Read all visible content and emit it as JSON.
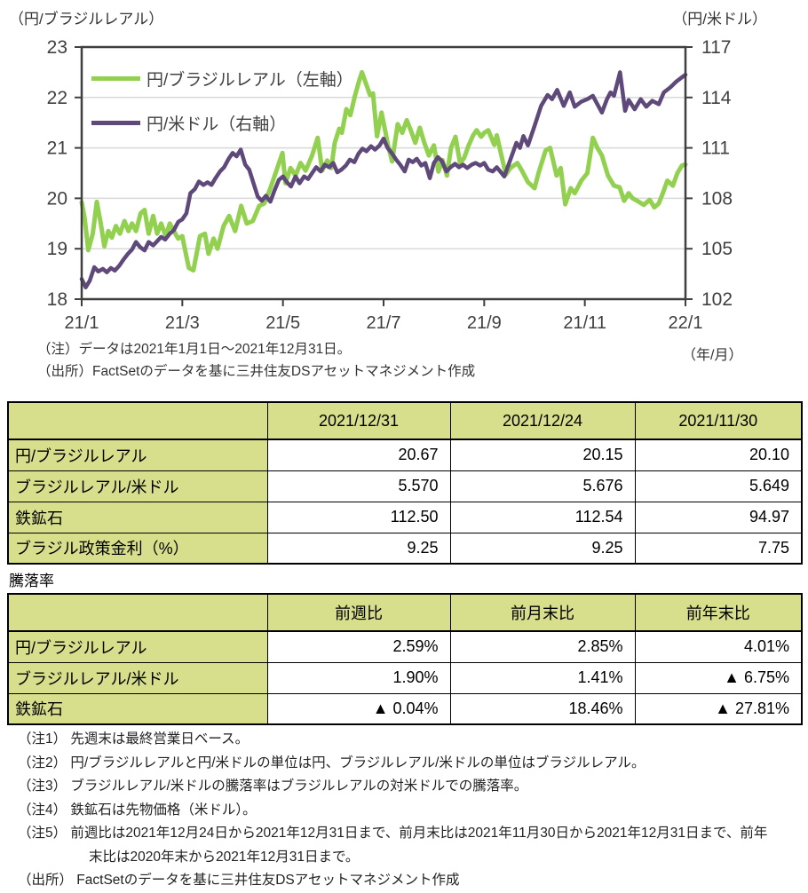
{
  "chart": {
    "unit_left": "（円/ブラジルレアル）",
    "unit_right": "（円/米ドル）",
    "x_unit": "（年/月）",
    "note": "（注）データは2021年1月1日～2021年12月31日。",
    "source": "（出所）FactSetのデータを基に三井住友DSアセットマネジメント作成",
    "legend": [
      {
        "label": "円/ブラジルレアル（左軸）"
      },
      {
        "label": "円/米ドル（右軸）"
      }
    ]
  },
  "chart_data": {
    "type": "line",
    "title": "",
    "grid": true,
    "legend_position": "top-left-inside",
    "axis_color": "#3f3f3f",
    "grid_color": "#d9d9d9",
    "label_color": "#404040",
    "x_axis": {
      "label": "（年/月）",
      "ticks": [
        "21/1",
        "21/3",
        "21/5",
        "21/7",
        "21/9",
        "21/11",
        "22/1"
      ],
      "range_months": [
        0,
        12
      ]
    },
    "y_left": {
      "label": "（円/ブラジルレアル）",
      "min": 18,
      "max": 23,
      "ticks": [
        23,
        22,
        21,
        20,
        19,
        18
      ]
    },
    "y_right": {
      "label": "（円/米ドル）",
      "min": 102,
      "max": 117,
      "ticks": [
        117,
        114,
        111,
        108,
        105,
        102
      ]
    },
    "series": [
      {
        "name": "円/ブラジルレアル（左軸）",
        "axis": "left",
        "color": "#92d050",
        "width": 5,
        "points": [
          [
            0,
            19.92
          ],
          [
            0.06,
            19.6
          ],
          [
            0.13,
            18.97
          ],
          [
            0.22,
            19.3
          ],
          [
            0.3,
            19.93
          ],
          [
            0.38,
            19.5
          ],
          [
            0.45,
            19.05
          ],
          [
            0.53,
            19.35
          ],
          [
            0.6,
            19.22
          ],
          [
            0.68,
            19.45
          ],
          [
            0.76,
            19.3
          ],
          [
            0.85,
            19.55
          ],
          [
            0.93,
            19.35
          ],
          [
            1,
            19.5
          ],
          [
            1.08,
            19.35
          ],
          [
            1.17,
            19.7
          ],
          [
            1.25,
            19.77
          ],
          [
            1.33,
            19.3
          ],
          [
            1.42,
            19.65
          ],
          [
            1.5,
            19.3
          ],
          [
            1.58,
            19.5
          ],
          [
            1.67,
            19.25
          ],
          [
            1.75,
            19.5
          ],
          [
            1.83,
            19.35
          ],
          [
            1.92,
            19.2
          ],
          [
            2,
            19.25
          ],
          [
            2.08,
            18.85
          ],
          [
            2.13,
            18.62
          ],
          [
            2.22,
            18.57
          ],
          [
            2.35,
            19.25
          ],
          [
            2.45,
            19.3
          ],
          [
            2.52,
            18.9
          ],
          [
            2.62,
            19.2
          ],
          [
            2.7,
            19
          ],
          [
            2.82,
            19.45
          ],
          [
            2.93,
            19.65
          ],
          [
            3.05,
            19.35
          ],
          [
            3.17,
            19.85
          ],
          [
            3.28,
            19.5
          ],
          [
            3.4,
            19.55
          ],
          [
            3.53,
            19.85
          ],
          [
            3.63,
            19.9
          ],
          [
            3.75,
            20.2
          ],
          [
            3.87,
            20.55
          ],
          [
            3.99,
            20.9
          ],
          [
            4.05,
            20.3
          ],
          [
            4.15,
            20.6
          ],
          [
            4.25,
            20.45
          ],
          [
            4.35,
            20.7
          ],
          [
            4.45,
            20.55
          ],
          [
            4.58,
            20.85
          ],
          [
            4.69,
            21.2
          ],
          [
            4.78,
            20.55
          ],
          [
            4.88,
            20.75
          ],
          [
            4.96,
            20.6
          ],
          [
            5.03,
            21.1
          ],
          [
            5.12,
            21.38
          ],
          [
            5.17,
            21.3
          ],
          [
            5.26,
            21.77
          ],
          [
            5.34,
            21.65
          ],
          [
            5.43,
            22.03
          ],
          [
            5.52,
            22.35
          ],
          [
            5.57,
            22.5
          ],
          [
            5.66,
            22.25
          ],
          [
            5.73,
            22.05
          ],
          [
            5.79,
            22.08
          ],
          [
            5.87,
            21.23
          ],
          [
            5.96,
            21.7
          ],
          [
            6.09,
            21.05
          ],
          [
            6.17,
            20.73
          ],
          [
            6.28,
            21.47
          ],
          [
            6.37,
            21.3
          ],
          [
            6.46,
            21.55
          ],
          [
            6.54,
            21.35
          ],
          [
            6.63,
            21.1
          ],
          [
            6.72,
            21.4
          ],
          [
            6.81,
            21.1
          ],
          [
            6.9,
            20.85
          ],
          [
            7,
            21.05
          ],
          [
            7.09,
            20.53
          ],
          [
            7.17,
            20.76
          ],
          [
            7.26,
            20.45
          ],
          [
            7.34,
            21
          ],
          [
            7.43,
            21.22
          ],
          [
            7.52,
            20.7
          ],
          [
            7.6,
            20.8
          ],
          [
            7.69,
            21.05
          ],
          [
            7.78,
            21.25
          ],
          [
            7.85,
            21.35
          ],
          [
            7.94,
            21.22
          ],
          [
            8,
            21.3
          ],
          [
            8.08,
            21.35
          ],
          [
            8.2,
            21.06
          ],
          [
            8.25,
            21.25
          ],
          [
            8.43,
            20.47
          ],
          [
            8.52,
            20.6
          ],
          [
            8.66,
            20.7
          ],
          [
            8.75,
            20.55
          ],
          [
            8.87,
            20.32
          ],
          [
            9,
            20.2
          ],
          [
            9.08,
            20.5
          ],
          [
            9.22,
            20.95
          ],
          [
            9.31,
            21
          ],
          [
            9.44,
            20.45
          ],
          [
            9.52,
            20.6
          ],
          [
            9.61,
            19.88
          ],
          [
            9.72,
            20.2
          ],
          [
            9.8,
            20.1
          ],
          [
            9.93,
            20.35
          ],
          [
            10.05,
            20.5
          ],
          [
            10.16,
            21.2
          ],
          [
            10.25,
            21
          ],
          [
            10.34,
            20.85
          ],
          [
            10.46,
            20.45
          ],
          [
            10.58,
            20.25
          ],
          [
            10.69,
            20.22
          ],
          [
            10.78,
            19.95
          ],
          [
            10.87,
            20.1
          ],
          [
            10.95,
            20
          ],
          [
            11.04,
            19.95
          ],
          [
            11.17,
            19.87
          ],
          [
            11.29,
            19.97
          ],
          [
            11.38,
            19.82
          ],
          [
            11.47,
            19.9
          ],
          [
            11.55,
            20.1
          ],
          [
            11.64,
            20.35
          ],
          [
            11.75,
            20.25
          ],
          [
            11.84,
            20.5
          ],
          [
            11.93,
            20.65
          ],
          [
            12,
            20.67
          ]
        ]
      },
      {
        "name": "円/米ドル（右軸）",
        "axis": "right",
        "color": "#5f497a",
        "width": 4.5,
        "points": [
          [
            0,
            103.2
          ],
          [
            0.08,
            102.7
          ],
          [
            0.16,
            103.1
          ],
          [
            0.25,
            103.9
          ],
          [
            0.33,
            103.65
          ],
          [
            0.42,
            103.8
          ],
          [
            0.5,
            103.6
          ],
          [
            0.58,
            103.85
          ],
          [
            0.66,
            103.7
          ],
          [
            0.75,
            104
          ],
          [
            0.83,
            104.35
          ],
          [
            0.92,
            104.7
          ],
          [
            1,
            104.95
          ],
          [
            1.08,
            105.4
          ],
          [
            1.16,
            105.1
          ],
          [
            1.25,
            104.9
          ],
          [
            1.33,
            105.4
          ],
          [
            1.42,
            105.2
          ],
          [
            1.5,
            105.45
          ],
          [
            1.58,
            105.7
          ],
          [
            1.66,
            105.55
          ],
          [
            1.75,
            105.9
          ],
          [
            1.83,
            106.1
          ],
          [
            1.92,
            106.6
          ],
          [
            2,
            106.75
          ],
          [
            2.08,
            107.1
          ],
          [
            2.16,
            108.3
          ],
          [
            2.25,
            108.55
          ],
          [
            2.33,
            109
          ],
          [
            2.42,
            108.8
          ],
          [
            2.5,
            108.95
          ],
          [
            2.58,
            108.8
          ],
          [
            2.66,
            109.2
          ],
          [
            2.75,
            109.6
          ],
          [
            2.83,
            109.85
          ],
          [
            2.92,
            110.35
          ],
          [
            3,
            110.7
          ],
          [
            3.08,
            110.5
          ],
          [
            3.16,
            110.9
          ],
          [
            3.25,
            110
          ],
          [
            3.33,
            109.7
          ],
          [
            3.42,
            108.85
          ],
          [
            3.5,
            108.1
          ],
          [
            3.58,
            107.85
          ],
          [
            3.66,
            108.15
          ],
          [
            3.75,
            107.8
          ],
          [
            3.83,
            108.45
          ],
          [
            3.92,
            109.1
          ],
          [
            4,
            109.3
          ],
          [
            4.08,
            108.95
          ],
          [
            4.16,
            108.7
          ],
          [
            4.25,
            109.3
          ],
          [
            4.33,
            108.9
          ],
          [
            4.42,
            109.3
          ],
          [
            4.5,
            109.15
          ],
          [
            4.58,
            109.5
          ],
          [
            4.66,
            109.85
          ],
          [
            4.75,
            109.6
          ],
          [
            4.83,
            110
          ],
          [
            4.92,
            109.85
          ],
          [
            5,
            110.1
          ],
          [
            5.08,
            109.55
          ],
          [
            5.16,
            109.7
          ],
          [
            5.25,
            109.95
          ],
          [
            5.33,
            110.3
          ],
          [
            5.42,
            110.15
          ],
          [
            5.5,
            110.65
          ],
          [
            5.58,
            110.95
          ],
          [
            5.66,
            110.8
          ],
          [
            5.75,
            111.1
          ],
          [
            5.83,
            110.9
          ],
          [
            5.92,
            111.15
          ],
          [
            6,
            111.55
          ],
          [
            6.08,
            111
          ],
          [
            6.16,
            110.7
          ],
          [
            6.25,
            110.3
          ],
          [
            6.33,
            110
          ],
          [
            6.42,
            109.6
          ],
          [
            6.5,
            110.3
          ],
          [
            6.58,
            110.15
          ],
          [
            6.66,
            110.35
          ],
          [
            6.75,
            109.95
          ],
          [
            6.83,
            110.1
          ],
          [
            6.92,
            109.2
          ],
          [
            7,
            110.1
          ],
          [
            7.08,
            110.45
          ],
          [
            7.16,
            110.2
          ],
          [
            7.25,
            109.6
          ],
          [
            7.33,
            109.85
          ],
          [
            7.42,
            110.05
          ],
          [
            7.5,
            109.85
          ],
          [
            7.58,
            110
          ],
          [
            7.66,
            109.8
          ],
          [
            7.75,
            110
          ],
          [
            7.83,
            110.1
          ],
          [
            7.92,
            109.95
          ],
          [
            8,
            110.1
          ],
          [
            8.08,
            109.7
          ],
          [
            8.17,
            109.6
          ],
          [
            8.25,
            109.85
          ],
          [
            8.4,
            109.3
          ],
          [
            8.52,
            110.3
          ],
          [
            8.64,
            111.3
          ],
          [
            8.71,
            111
          ],
          [
            8.78,
            111.7
          ],
          [
            8.87,
            111.15
          ],
          [
            9,
            112.3
          ],
          [
            9.13,
            113.5
          ],
          [
            9.26,
            114.15
          ],
          [
            9.35,
            113.9
          ],
          [
            9.45,
            114.45
          ],
          [
            9.58,
            113.5
          ],
          [
            9.7,
            114.3
          ],
          [
            9.8,
            113.45
          ],
          [
            9.93,
            113.75
          ],
          [
            10.05,
            113.9
          ],
          [
            10.16,
            114.1
          ],
          [
            10.25,
            113.6
          ],
          [
            10.34,
            113.1
          ],
          [
            10.44,
            113.9
          ],
          [
            10.51,
            114.3
          ],
          [
            10.58,
            114.1
          ],
          [
            10.7,
            115.5
          ],
          [
            10.8,
            113.2
          ],
          [
            10.87,
            113.85
          ],
          [
            10.99,
            113.3
          ],
          [
            11.11,
            113.9
          ],
          [
            11.22,
            113.45
          ],
          [
            11.34,
            113.8
          ],
          [
            11.47,
            113.6
          ],
          [
            11.57,
            114.3
          ],
          [
            11.7,
            114.6
          ],
          [
            11.82,
            114.95
          ],
          [
            11.93,
            115.2
          ],
          [
            12,
            115.35
          ]
        ]
      }
    ]
  },
  "table1": {
    "headers": [
      "",
      "2021/12/31",
      "2021/12/24",
      "2021/11/30"
    ],
    "rows": [
      {
        "label": "円/ブラジルレアル",
        "values": [
          "20.67",
          "20.15",
          "20.10"
        ]
      },
      {
        "label": "ブラジルレアル/米ドル",
        "values": [
          "5.570",
          "5.676",
          "5.649"
        ]
      },
      {
        "label": "鉄鉱石",
        "values": [
          "112.50",
          "112.54",
          "94.97"
        ]
      },
      {
        "label": "ブラジル政策金利（%）",
        "values": [
          "9.25",
          "9.25",
          "7.75"
        ]
      }
    ]
  },
  "table2_title": "騰落率",
  "table2": {
    "headers": [
      "",
      "前週比",
      "前月末比",
      "前年末比"
    ],
    "rows": [
      {
        "label": "円/ブラジルレアル",
        "values": [
          "2.59%",
          "2.85%",
          "4.01%"
        ]
      },
      {
        "label": "ブラジルレアル/米ドル",
        "values": [
          "1.90%",
          "1.41%",
          "▲ 6.75%"
        ]
      },
      {
        "label": "鉄鉱石",
        "values": [
          "▲ 0.04%",
          "18.46%",
          "▲ 27.81%"
        ]
      }
    ]
  },
  "footnotes": [
    "（注1） 先週末は最終営業日ベース。",
    "（注2） 円/ブラジルレアルと円/米ドルの単位は円、ブラジルレアル/米ドルの単位はブラジルレアル。",
    "（注3） ブラジルレアル/米ドルの騰落率はブラジルレアルの対米ドルでの騰落率。",
    "（注4） 鉄鉱石は先物価格（米ドル）。",
    "（注5） 前週比は2021年12月24日から2021年12月31日まで、前月末比は2021年11月30日から2021年12月31日まで、前年末比は2020年末から2021年12月31日まで。",
    "（出所） FactSetのデータを基に三井住友DSアセットマネジメント作成"
  ]
}
